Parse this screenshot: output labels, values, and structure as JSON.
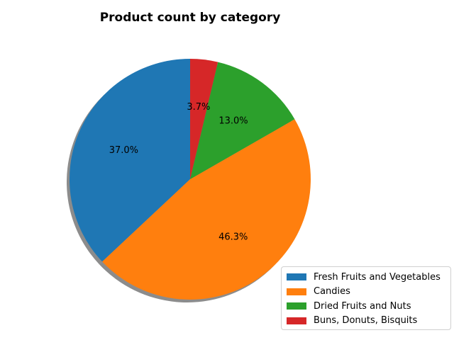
{
  "chart_data": {
    "type": "pie",
    "title": "Product count by category",
    "categories": [
      "Fresh Fruits and Vegetables",
      "Candies",
      "Dried Fruits and Nuts",
      "Buns, Donuts, Bisquits"
    ],
    "values": [
      37.0,
      46.3,
      13.0,
      3.7
    ],
    "labels": [
      "37.0%",
      "46.3%",
      "13.0%",
      "3.7%"
    ],
    "colors": [
      "#1f77b4",
      "#ff7f0e",
      "#2ca02c",
      "#d62728"
    ],
    "start_angle_deg": 90,
    "direction": "counterclockwise",
    "shadow": true,
    "legend_position": "lower-right"
  }
}
